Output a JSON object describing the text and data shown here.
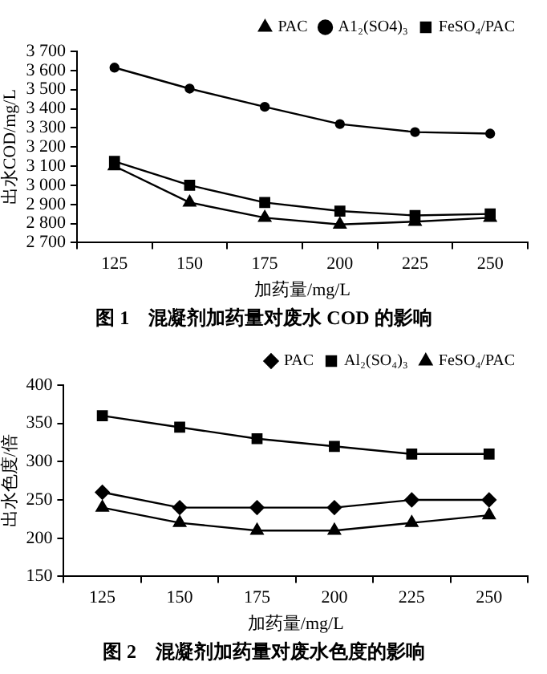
{
  "chart_data": [
    {
      "type": "line",
      "title": "图 1　混凝剂加药量对废水 COD 的影响",
      "xlabel": "加药量/mg/L",
      "ylabel": "出水COD/mg/L",
      "categories": [
        "125",
        "150",
        "175",
        "200",
        "225",
        "250"
      ],
      "series": [
        {
          "name": "PAC",
          "color": "#000000",
          "marker": "triangle",
          "values": [
            3100,
            2910,
            2830,
            2795,
            2810,
            2830
          ]
        },
        {
          "name": "A1₂(SO4)₃",
          "color": "#000000",
          "marker": "circle",
          "values": [
            3615,
            3505,
            3410,
            3320,
            3278,
            3270
          ]
        },
        {
          "name": "FeSO₄/PAC",
          "color": "#000000",
          "marker": "square",
          "values": [
            3125,
            3000,
            2910,
            2865,
            2842,
            2850
          ]
        }
      ],
      "ylim": [
        2700,
        3700
      ],
      "yticks": [
        {
          "value": 2700,
          "label": "2 700"
        },
        {
          "value": 2800,
          "label": "2 800"
        },
        {
          "value": 2900,
          "label": "2 900"
        },
        {
          "value": 3000,
          "label": "3 000"
        },
        {
          "value": 3100,
          "label": "3 100"
        },
        {
          "value": 3200,
          "label": "3 200"
        },
        {
          "value": 3300,
          "label": "3 300"
        },
        {
          "value": 3400,
          "label": "3 400"
        },
        {
          "value": 3500,
          "label": "3 500"
        },
        {
          "value": 3600,
          "label": "3 600"
        },
        {
          "value": 3700,
          "label": "3 700"
        }
      ],
      "grid": false,
      "legend": "top",
      "line_style": "solid"
    },
    {
      "type": "line",
      "title": "图 2　混凝剂加药量对废水色度的影响",
      "xlabel": "加药量/mg/L",
      "ylabel": "出水色度/倍",
      "categories": [
        "125",
        "150",
        "175",
        "200",
        "225",
        "250"
      ],
      "series": [
        {
          "name": "PAC",
          "color": "#000000",
          "marker": "diamond",
          "values": [
            260,
            240,
            240,
            240,
            250,
            250
          ]
        },
        {
          "name": "Al₂(SO₄)₃",
          "color": "#000000",
          "marker": "square",
          "values": [
            360,
            345,
            330,
            320,
            310,
            310
          ]
        },
        {
          "name": "FeSO₄/PAC",
          "color": "#000000",
          "marker": "triangle",
          "values": [
            240,
            220,
            210,
            210,
            220,
            230
          ]
        }
      ],
      "ylim": [
        150,
        400
      ],
      "yticks": [
        150,
        200,
        250,
        300,
        350,
        400
      ],
      "grid": false,
      "legend": "top",
      "line_style": "solid"
    }
  ]
}
